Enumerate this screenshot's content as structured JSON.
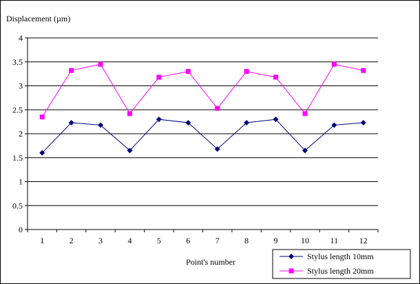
{
  "chart_data": {
    "type": "line",
    "ylabel": "Displacement (µm)",
    "xlabel": "Point's number",
    "ylim": [
      0,
      4
    ],
    "y_ticks": [
      "0",
      "0.5",
      "1",
      "1.5",
      "2",
      "2.5",
      "3",
      "3.5",
      "4"
    ],
    "y_tick_values": [
      0,
      0.5,
      1,
      1.5,
      2,
      2.5,
      3,
      3.5,
      4
    ],
    "categories": [
      "1",
      "2",
      "3",
      "4",
      "5",
      "6",
      "7",
      "8",
      "9",
      "10",
      "11",
      "12"
    ],
    "grid": "horizontal",
    "legend_position": "bottom-right",
    "series": [
      {
        "name": "Stylus length 10mm",
        "color": "#000080",
        "marker": "diamond",
        "values": [
          1.6,
          2.23,
          2.18,
          1.65,
          2.3,
          2.23,
          1.68,
          2.23,
          2.3,
          1.65,
          2.18,
          2.23
        ]
      },
      {
        "name": "Stylus length 20mm",
        "color": "#FF00FF",
        "marker": "square",
        "values": [
          2.35,
          3.32,
          3.45,
          2.42,
          3.18,
          3.3,
          2.53,
          3.3,
          3.18,
          2.42,
          3.45,
          3.32
        ]
      }
    ]
  }
}
